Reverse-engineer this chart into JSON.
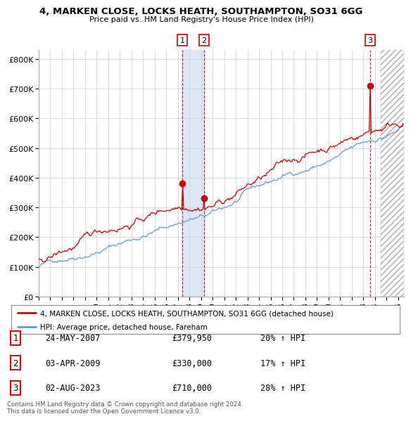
{
  "title": "4, MARKEN CLOSE, LOCKS HEATH, SOUTHAMPTON, SO31 6GG",
  "subtitle": "Price paid vs. HM Land Registry's House Price Index (HPI)",
  "ylim": [
    0,
    830000
  ],
  "xlim_start": 1995.0,
  "xlim_end": 2026.5,
  "yticks": [
    0,
    100000,
    200000,
    300000,
    400000,
    500000,
    600000,
    700000,
    800000
  ],
  "ytick_labels": [
    "£0",
    "£100K",
    "£200K",
    "£300K",
    "£400K",
    "£500K",
    "£600K",
    "£700K",
    "£800K"
  ],
  "xtick_years": [
    1995,
    1996,
    1997,
    1998,
    1999,
    2000,
    2001,
    2002,
    2003,
    2004,
    2005,
    2006,
    2007,
    2008,
    2009,
    2010,
    2011,
    2012,
    2013,
    2014,
    2015,
    2016,
    2017,
    2018,
    2019,
    2020,
    2021,
    2022,
    2023,
    2024,
    2025,
    2026
  ],
  "sale1_x": 2007.388,
  "sale1_y": 379950,
  "sale2_x": 2009.252,
  "sale2_y": 330000,
  "sale3_x": 2023.585,
  "sale3_y": 710000,
  "sale1_label": "1",
  "sale2_label": "2",
  "sale3_label": "3",
  "red_line_color": "#cc0000",
  "blue_line_color": "#6699cc",
  "vline_color": "#cc0000",
  "shade_color": "#c8d8f0",
  "dot_color": "#cc0000",
  "bg_color": "#ffffff",
  "grid_color": "#cccccc",
  "legend_label_red": "4, MARKEN CLOSE, LOCKS HEATH, SOUTHAMPTON, SO31 6GG (detached house)",
  "legend_label_blue": "HPI: Average price, detached house, Fareham",
  "table_entries": [
    {
      "num": "1",
      "date": "24-MAY-2007",
      "price": "£379,950",
      "hpi": "20% ↑ HPI"
    },
    {
      "num": "2",
      "date": "03-APR-2009",
      "price": "£330,000",
      "hpi": "17% ↑ HPI"
    },
    {
      "num": "3",
      "date": "02-AUG-2023",
      "price": "£710,000",
      "hpi": "28% ↑ HPI"
    }
  ],
  "footnote": "Contains HM Land Registry data © Crown copyright and database right 2024.\nThis data is licensed under the Open Government Licence v3.0.",
  "hatch_region_start": 2024.5,
  "hatch_region_end": 2026.5
}
